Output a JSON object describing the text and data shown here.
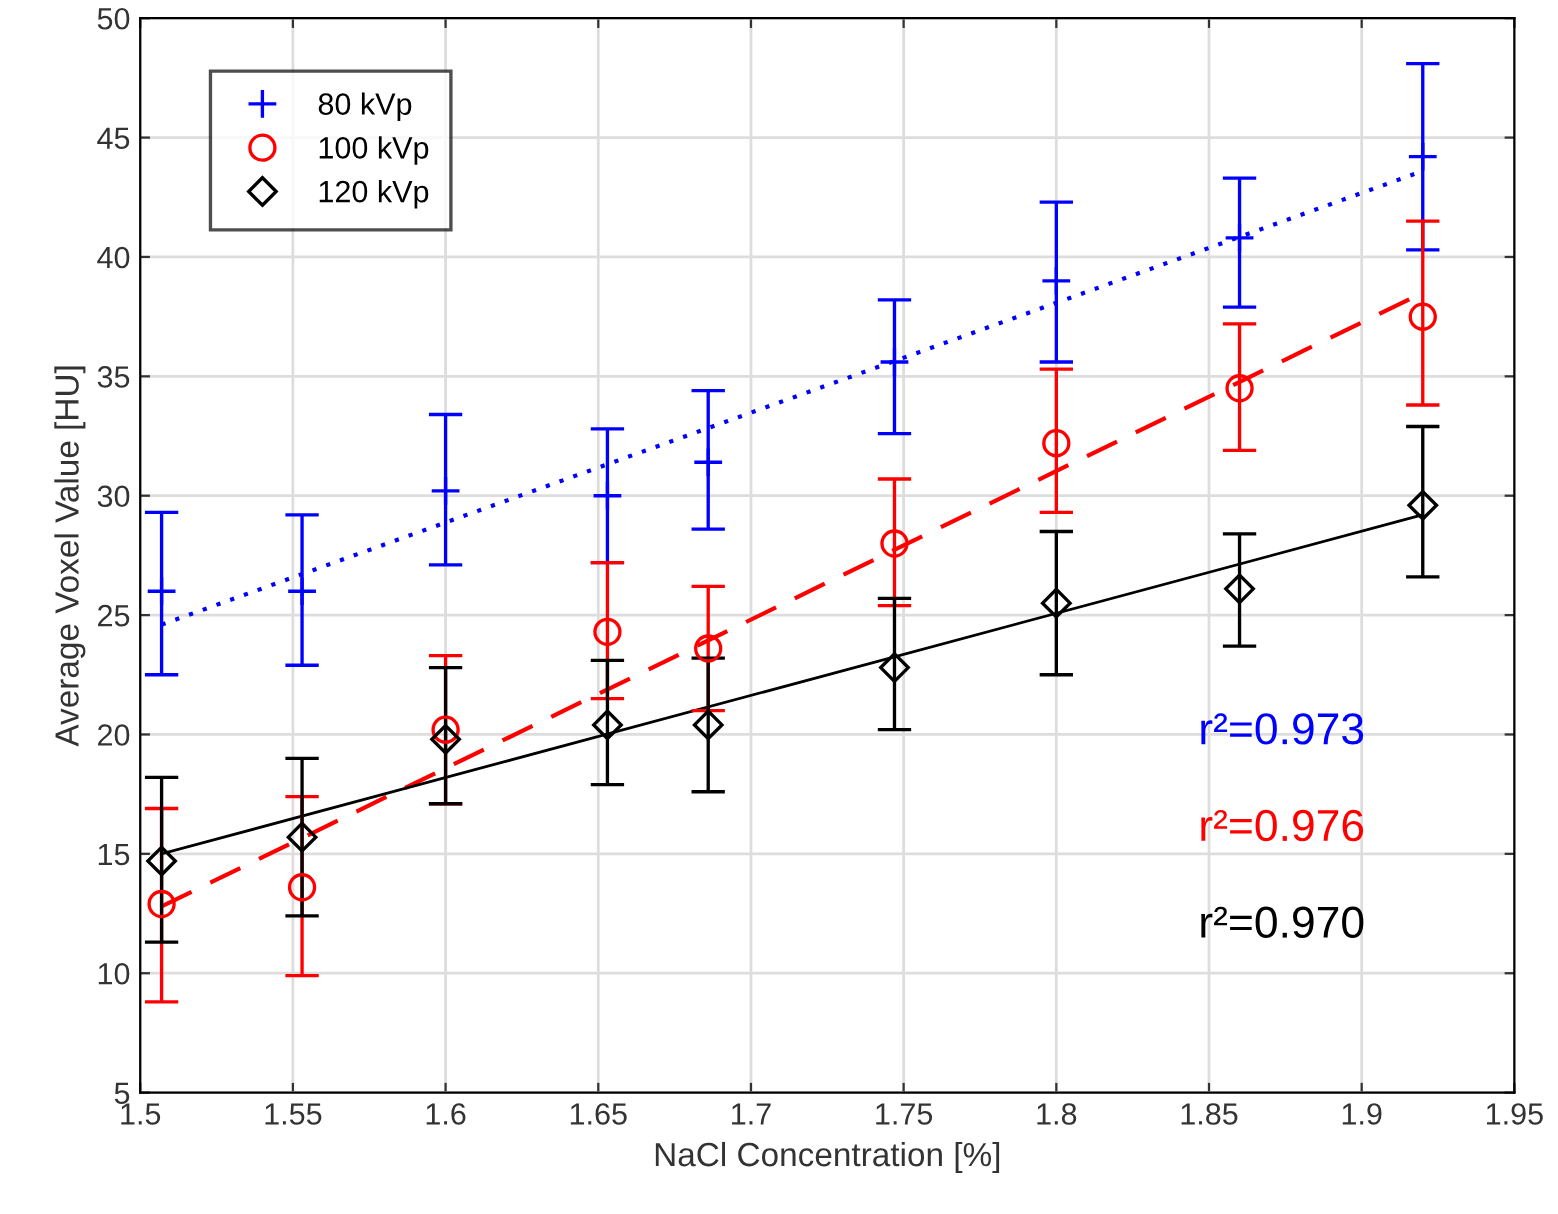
{
  "chart_data": {
    "type": "scatter",
    "xlabel": "NaCl Concentration [%]",
    "ylabel": "Average Voxel Value [HU]",
    "xlim": [
      1.5,
      1.95
    ],
    "xticks": [
      1.5,
      1.55,
      1.6,
      1.65,
      1.7,
      1.75,
      1.8,
      1.85,
      1.9,
      1.95
    ],
    "ylim": [
      5,
      50
    ],
    "yticks": [
      5,
      10,
      15,
      20,
      25,
      30,
      35,
      40,
      45,
      50
    ],
    "grid": true,
    "legend": "top left",
    "series": [
      {
        "name": "80 kVp",
        "color": "#0000ff",
        "marker": "cross",
        "x": [
          1.507,
          1.553,
          1.6,
          1.653,
          1.686,
          1.747,
          1.8,
          1.86,
          1.92
        ],
        "values": [
          26.0,
          26.0,
          30.2,
          30.0,
          31.4,
          35.6,
          39.0,
          40.8,
          44.2
        ],
        "errors": [
          [
            22.5,
            29.3
          ],
          [
            22.9,
            29.2
          ],
          [
            27.1,
            33.4
          ],
          [
            27.2,
            32.8
          ],
          [
            28.6,
            34.4
          ],
          [
            32.6,
            38.2
          ],
          [
            35.6,
            42.3
          ],
          [
            37.9,
            43.3
          ],
          [
            40.3,
            48.1
          ]
        ]
      },
      {
        "name": "100 kVp",
        "color": "#ff0000",
        "marker": "circle",
        "x": [
          1.507,
          1.553,
          1.6,
          1.653,
          1.686,
          1.747,
          1.8,
          1.86,
          1.92
        ],
        "values": [
          12.9,
          13.6,
          20.2,
          24.3,
          23.6,
          28.0,
          32.2,
          34.5,
          37.5
        ],
        "errors": [
          [
            8.8,
            16.9
          ],
          [
            9.9,
            17.4
          ],
          [
            17.1,
            23.3
          ],
          [
            21.5,
            27.2
          ],
          [
            21.0,
            26.2
          ],
          [
            25.4,
            30.7
          ],
          [
            29.3,
            35.3
          ],
          [
            31.9,
            37.2
          ],
          [
            33.8,
            41.5
          ]
        ]
      },
      {
        "name": "120 kVp",
        "color": "#000000",
        "marker": "diamond",
        "x": [
          1.507,
          1.553,
          1.6,
          1.653,
          1.686,
          1.747,
          1.8,
          1.86,
          1.92
        ],
        "values": [
          14.7,
          15.7,
          19.8,
          20.4,
          20.4,
          22.8,
          25.5,
          26.1,
          29.6
        ],
        "errors": [
          [
            11.3,
            18.2
          ],
          [
            12.4,
            19.0
          ],
          [
            17.1,
            22.8
          ],
          [
            17.9,
            23.1
          ],
          [
            17.6,
            23.2
          ],
          [
            20.2,
            25.7
          ],
          [
            22.5,
            28.5
          ],
          [
            23.7,
            28.4
          ],
          [
            26.6,
            32.9
          ]
        ]
      },
      {
        "type": "line",
        "color": "#0000ff",
        "line_style": "dotted",
        "x": [
          1.507,
          1.92
        ],
        "values": [
          24.6,
          43.6
        ]
      },
      {
        "type": "line",
        "color": "#ff0000",
        "line_style": "dashed",
        "x": [
          1.507,
          1.92
        ],
        "values": [
          12.8,
          38.5
        ]
      },
      {
        "type": "line",
        "color": "#000000",
        "line_style": "solid",
        "x": [
          1.507,
          1.92
        ],
        "values": [
          15.0,
          29.2
        ]
      }
    ],
    "annotations": [
      "r²=0.973",
      "r²=0.976",
      "r²=0.970"
    ]
  }
}
